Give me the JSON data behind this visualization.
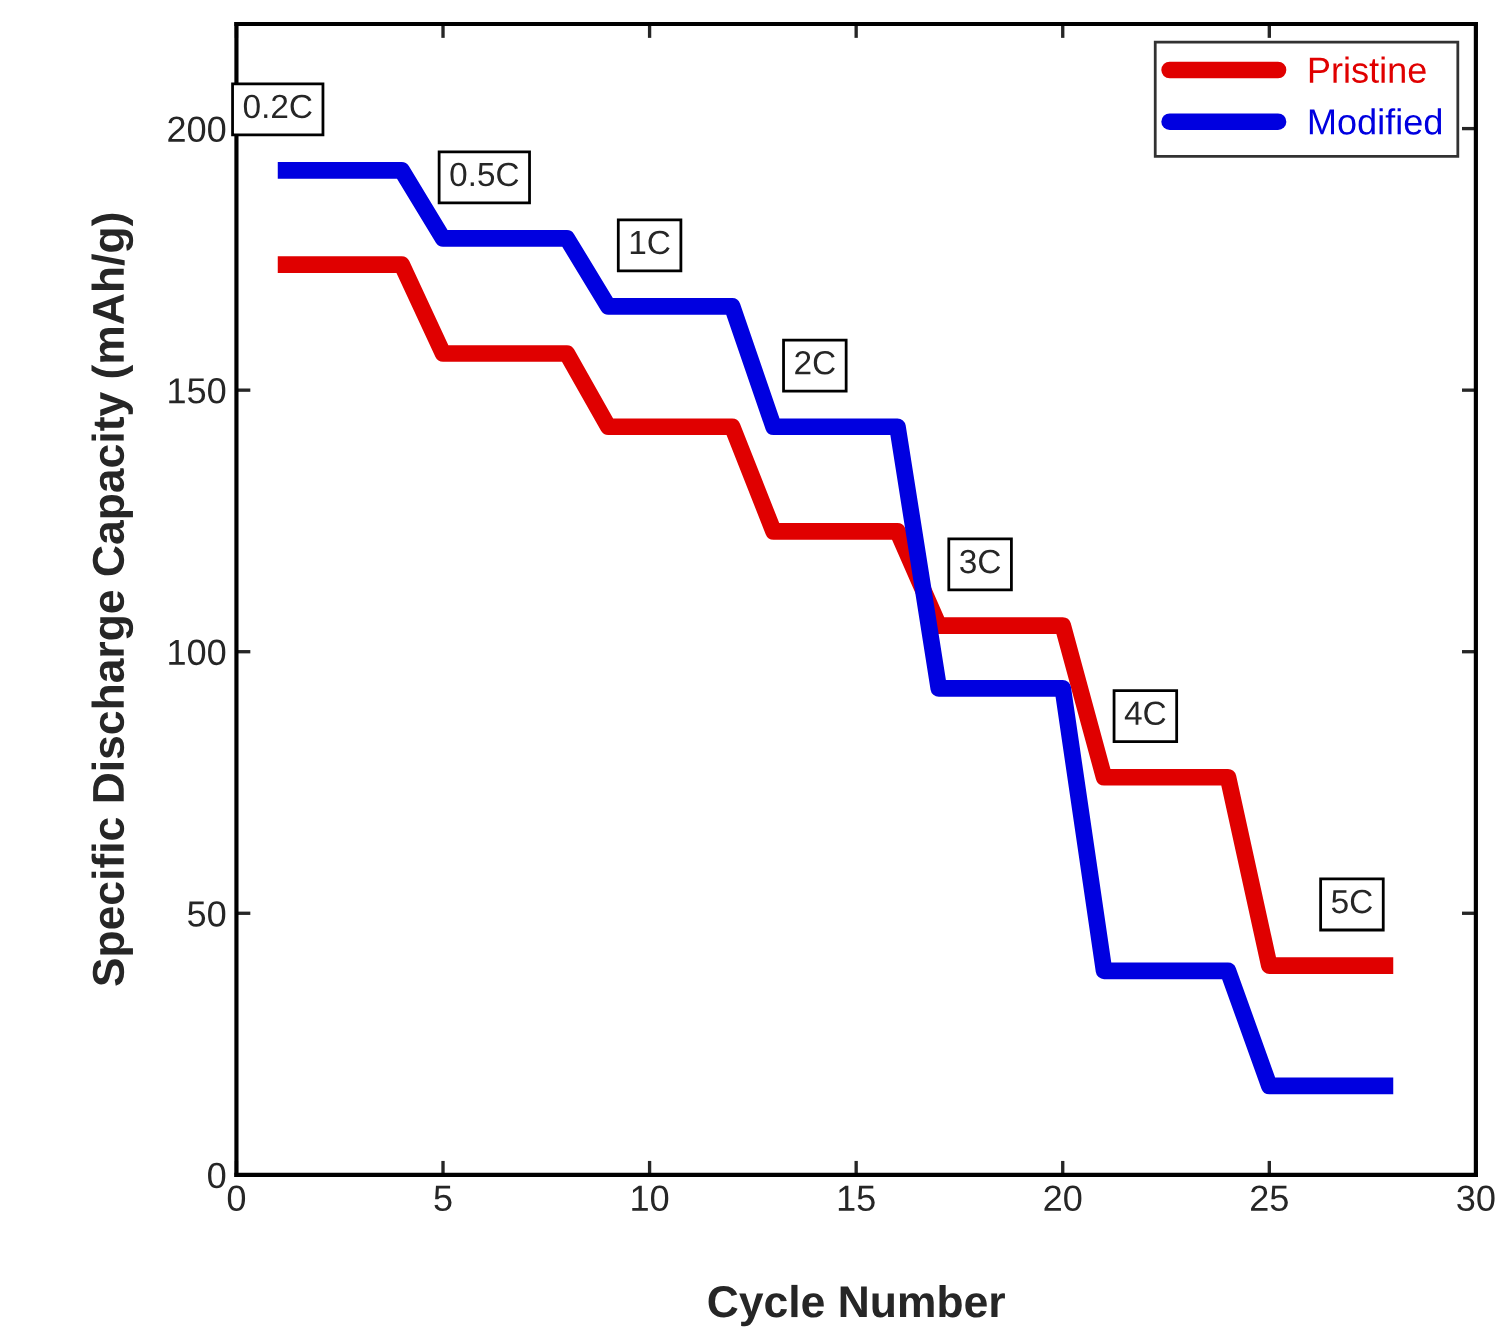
{
  "chart_data": {
    "type": "line",
    "xlabel": "Cycle Number",
    "ylabel": "Specific Discharge Capacity (mAh/g)",
    "x": [
      1,
      2,
      3,
      4,
      5,
      6,
      7,
      8,
      9,
      10,
      11,
      12,
      13,
      14,
      15,
      16,
      17,
      18,
      19,
      20,
      21,
      22,
      23,
      24,
      25,
      26,
      27,
      28
    ],
    "series": [
      {
        "name": "Pristine",
        "color": "#e00000",
        "values": [
          174,
          174,
          174,
          174,
          157,
          157,
          157,
          157,
          143,
          143,
          143,
          143,
          123,
          123,
          123,
          123,
          105,
          105,
          105,
          105,
          76,
          76,
          76,
          76,
          40,
          40,
          40,
          40
        ]
      },
      {
        "name": "Modified",
        "color": "#0000e0",
        "values": [
          192,
          192,
          192,
          192,
          179,
          179,
          179,
          179,
          166,
          166,
          166,
          166,
          143,
          143,
          143,
          143,
          93,
          93,
          93,
          93,
          39,
          39,
          39,
          39,
          17,
          17,
          17,
          17
        ]
      }
    ],
    "annotations": [
      {
        "text": "0.2C",
        "x": 1,
        "y": 192
      },
      {
        "text": "0.5C",
        "x": 6,
        "y": 179
      },
      {
        "text": "1C",
        "x": 10,
        "y": 166
      },
      {
        "text": "2C",
        "x": 14,
        "y": 143
      },
      {
        "text": "3C",
        "x": 18,
        "y": 105
      },
      {
        "text": "4C",
        "x": 22,
        "y": 76
      },
      {
        "text": "5C",
        "x": 27,
        "y": 40
      }
    ],
    "xlim": [
      0,
      30
    ],
    "xticks": [
      0,
      5,
      10,
      15,
      20,
      25,
      30
    ],
    "ylim": [
      0,
      220
    ],
    "yticks": [
      0,
      50,
      100,
      150,
      200
    ],
    "legend": "top right",
    "grid": false,
    "marker": "none",
    "line_style": "solid"
  }
}
